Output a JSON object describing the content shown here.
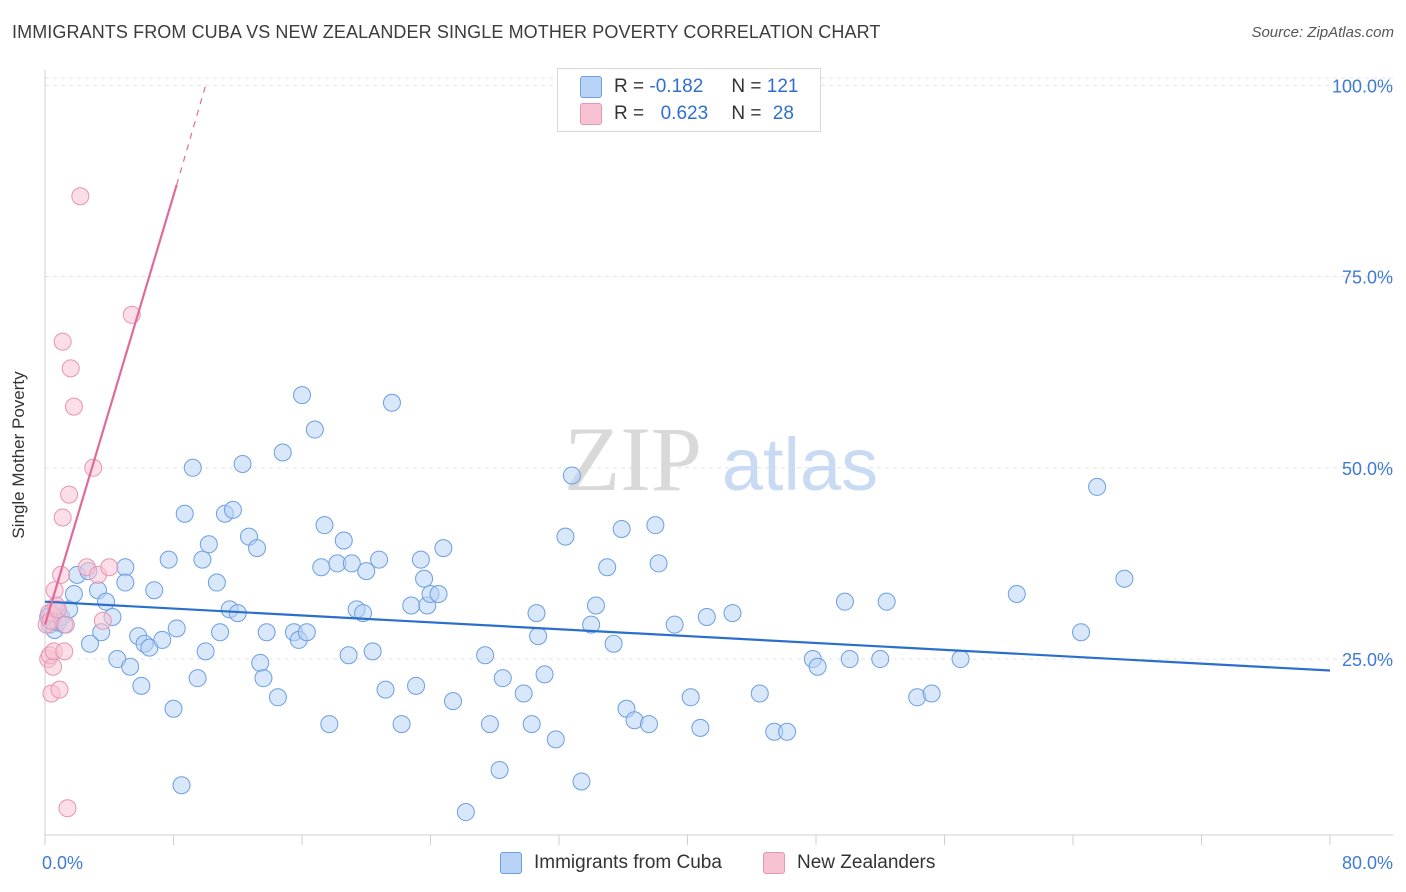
{
  "title": "IMMIGRANTS FROM CUBA VS NEW ZEALANDER SINGLE MOTHER POVERTY CORRELATION CHART",
  "source": "Source: ZipAtlas.com",
  "watermark": {
    "zip": "ZIP",
    "atlas": "atlas"
  },
  "legend": {
    "rows": [
      {
        "r_label": "R =",
        "r_value": "-0.182",
        "n_label": "N =",
        "n_value": "121"
      },
      {
        "r_label": "R =",
        "r_value": "0.623",
        "n_label": "N =",
        "n_value": "28"
      }
    ]
  },
  "colors": {
    "blue_fill": "#b8d3f5",
    "blue_stroke": "#6c9fe0",
    "blue_line": "#2b6fcc",
    "pink_fill": "#f7c3d3",
    "pink_stroke": "#e895b0",
    "pink_line": "#e06b9b",
    "axis_text": "#3f7bd4",
    "grid": "#e3e3e3"
  },
  "chart_data": {
    "type": "scatter",
    "title": "IMMIGRANTS FROM CUBA VS NEW ZEALANDER SINGLE MOTHER POVERTY CORRELATION CHART",
    "xlabel": "",
    "ylabel": "Single Mother Poverty",
    "xlim": [
      0,
      80
    ],
    "ylim": [
      2,
      102
    ],
    "x_tick_labels": [
      "0.0%",
      "80.0%"
    ],
    "y_ticks": [
      25,
      50,
      75,
      100
    ],
    "y_tick_labels": [
      "25.0%",
      "50.0%",
      "75.0%",
      "100.0%"
    ],
    "series": [
      {
        "name": "Immigrants from Cuba",
        "color": "#b8d3f5",
        "trend": {
          "x": [
            0,
            80
          ],
          "y": [
            32.5,
            23.5
          ]
        },
        "points": [
          [
            0.2,
            30.5
          ],
          [
            0.3,
            29.5
          ],
          [
            0.4,
            31
          ],
          [
            0.5,
            30
          ],
          [
            0.6,
            28.8
          ],
          [
            0.7,
            31.5
          ],
          [
            0.8,
            29.8
          ],
          [
            1.0,
            30.5
          ],
          [
            1.2,
            29.5
          ],
          [
            1.5,
            31.5
          ],
          [
            1.8,
            33.5
          ],
          [
            2.0,
            36
          ],
          [
            2.7,
            36.5
          ],
          [
            3.3,
            34
          ],
          [
            3.5,
            28.5
          ],
          [
            3.8,
            32.5
          ],
          [
            4.2,
            30.5
          ],
          [
            5.0,
            37
          ],
          [
            5.0,
            35
          ],
          [
            2.8,
            27
          ],
          [
            4.5,
            25
          ],
          [
            5.3,
            24
          ],
          [
            5.8,
            28
          ],
          [
            6.0,
            21.5
          ],
          [
            6.2,
            27
          ],
          [
            6.5,
            26.5
          ],
          [
            6.8,
            34
          ],
          [
            7.3,
            27.5
          ],
          [
            7.7,
            38
          ],
          [
            8.0,
            18.5
          ],
          [
            8.2,
            29
          ],
          [
            8.5,
            8.5
          ],
          [
            8.7,
            44
          ],
          [
            9.2,
            50
          ],
          [
            9.5,
            22.5
          ],
          [
            9.8,
            38
          ],
          [
            10.0,
            26
          ],
          [
            10.2,
            40
          ],
          [
            10.7,
            35
          ],
          [
            10.9,
            28.5
          ],
          [
            11.2,
            44
          ],
          [
            11.5,
            31.5
          ],
          [
            11.7,
            44.5
          ],
          [
            12.0,
            31
          ],
          [
            12.3,
            50.5
          ],
          [
            12.7,
            41
          ],
          [
            13.2,
            39.5
          ],
          [
            13.4,
            24.5
          ],
          [
            13.6,
            22.5
          ],
          [
            13.8,
            28.5
          ],
          [
            14.5,
            20
          ],
          [
            14.8,
            52
          ],
          [
            15.5,
            28.5
          ],
          [
            15.8,
            27.5
          ],
          [
            16.0,
            59.5
          ],
          [
            16.3,
            28.5
          ],
          [
            16.8,
            55
          ],
          [
            17.2,
            37
          ],
          [
            17.4,
            42.5
          ],
          [
            17.7,
            16.5
          ],
          [
            18.2,
            37.5
          ],
          [
            18.6,
            40.5
          ],
          [
            18.9,
            25.5
          ],
          [
            19.1,
            37.5
          ],
          [
            19.4,
            31.5
          ],
          [
            19.8,
            31
          ],
          [
            20.0,
            36.5
          ],
          [
            20.4,
            26
          ],
          [
            20.8,
            38
          ],
          [
            21.2,
            21
          ],
          [
            21.6,
            58.5
          ],
          [
            22.2,
            16.5
          ],
          [
            22.8,
            32
          ],
          [
            23.1,
            21.5
          ],
          [
            23.4,
            38
          ],
          [
            23.6,
            35.5
          ],
          [
            23.8,
            32
          ],
          [
            24.0,
            33.5
          ],
          [
            24.5,
            33.5
          ],
          [
            24.8,
            39.5
          ],
          [
            25.4,
            19.5
          ],
          [
            26.2,
            5
          ],
          [
            27.4,
            25.5
          ],
          [
            27.7,
            16.5
          ],
          [
            28.3,
            10.5
          ],
          [
            28.5,
            22.5
          ],
          [
            29.8,
            20.5
          ],
          [
            30.3,
            16.5
          ],
          [
            30.6,
            31
          ],
          [
            30.7,
            28
          ],
          [
            31.1,
            23
          ],
          [
            31.8,
            14.5
          ],
          [
            32.4,
            41
          ],
          [
            32.8,
            49
          ],
          [
            33.4,
            9
          ],
          [
            34.0,
            29.5
          ],
          [
            34.3,
            32
          ],
          [
            35.0,
            37
          ],
          [
            35.4,
            27
          ],
          [
            35.9,
            42
          ],
          [
            36.2,
            18.5
          ],
          [
            36.7,
            17
          ],
          [
            37.6,
            16.5
          ],
          [
            38.0,
            42.5
          ],
          [
            38.2,
            37.5
          ],
          [
            39.2,
            29.5
          ],
          [
            40.2,
            20
          ],
          [
            40.8,
            16
          ],
          [
            41.2,
            30.5
          ],
          [
            42.8,
            31
          ],
          [
            44.5,
            20.5
          ],
          [
            45.4,
            15.5
          ],
          [
            46.2,
            15.5
          ],
          [
            47.8,
            25
          ],
          [
            48.1,
            24
          ],
          [
            49.8,
            32.5
          ],
          [
            50.1,
            25
          ],
          [
            52.0,
            25
          ],
          [
            52.4,
            32.5
          ],
          [
            54.3,
            20
          ],
          [
            55.2,
            20.5
          ],
          [
            57.0,
            25
          ],
          [
            60.5,
            33.5
          ],
          [
            64.5,
            28.5
          ],
          [
            65.5,
            47.5
          ],
          [
            67.2,
            35.5
          ]
        ]
      },
      {
        "name": "New Zealanders",
        "color": "#f7c3d3",
        "trend": {
          "x": [
            0,
            8.2
          ],
          "y": [
            29.5,
            87
          ],
          "dashed_to": {
            "x": 10,
            "y": 100
          }
        },
        "points": [
          [
            0.1,
            29.5
          ],
          [
            0.2,
            25
          ],
          [
            0.25,
            31
          ],
          [
            0.3,
            25.5
          ],
          [
            0.35,
            30
          ],
          [
            0.4,
            20.5
          ],
          [
            0.5,
            24
          ],
          [
            0.55,
            26
          ],
          [
            0.6,
            34
          ],
          [
            0.7,
            32
          ],
          [
            0.8,
            31.5
          ],
          [
            0.9,
            21
          ],
          [
            1.0,
            36
          ],
          [
            1.1,
            43.5
          ],
          [
            1.1,
            66.5
          ],
          [
            1.2,
            26
          ],
          [
            1.3,
            29.5
          ],
          [
            1.4,
            5.5
          ],
          [
            1.5,
            46.5
          ],
          [
            1.6,
            63
          ],
          [
            1.8,
            58
          ],
          [
            2.2,
            85.5
          ],
          [
            2.6,
            37
          ],
          [
            3.0,
            50
          ],
          [
            3.3,
            36
          ],
          [
            3.6,
            30
          ],
          [
            4.0,
            37
          ],
          [
            5.4,
            70
          ]
        ]
      }
    ]
  },
  "bottom_legend": {
    "items": [
      {
        "label": "Immigrants from Cuba"
      },
      {
        "label": "New Zealanders"
      }
    ]
  }
}
